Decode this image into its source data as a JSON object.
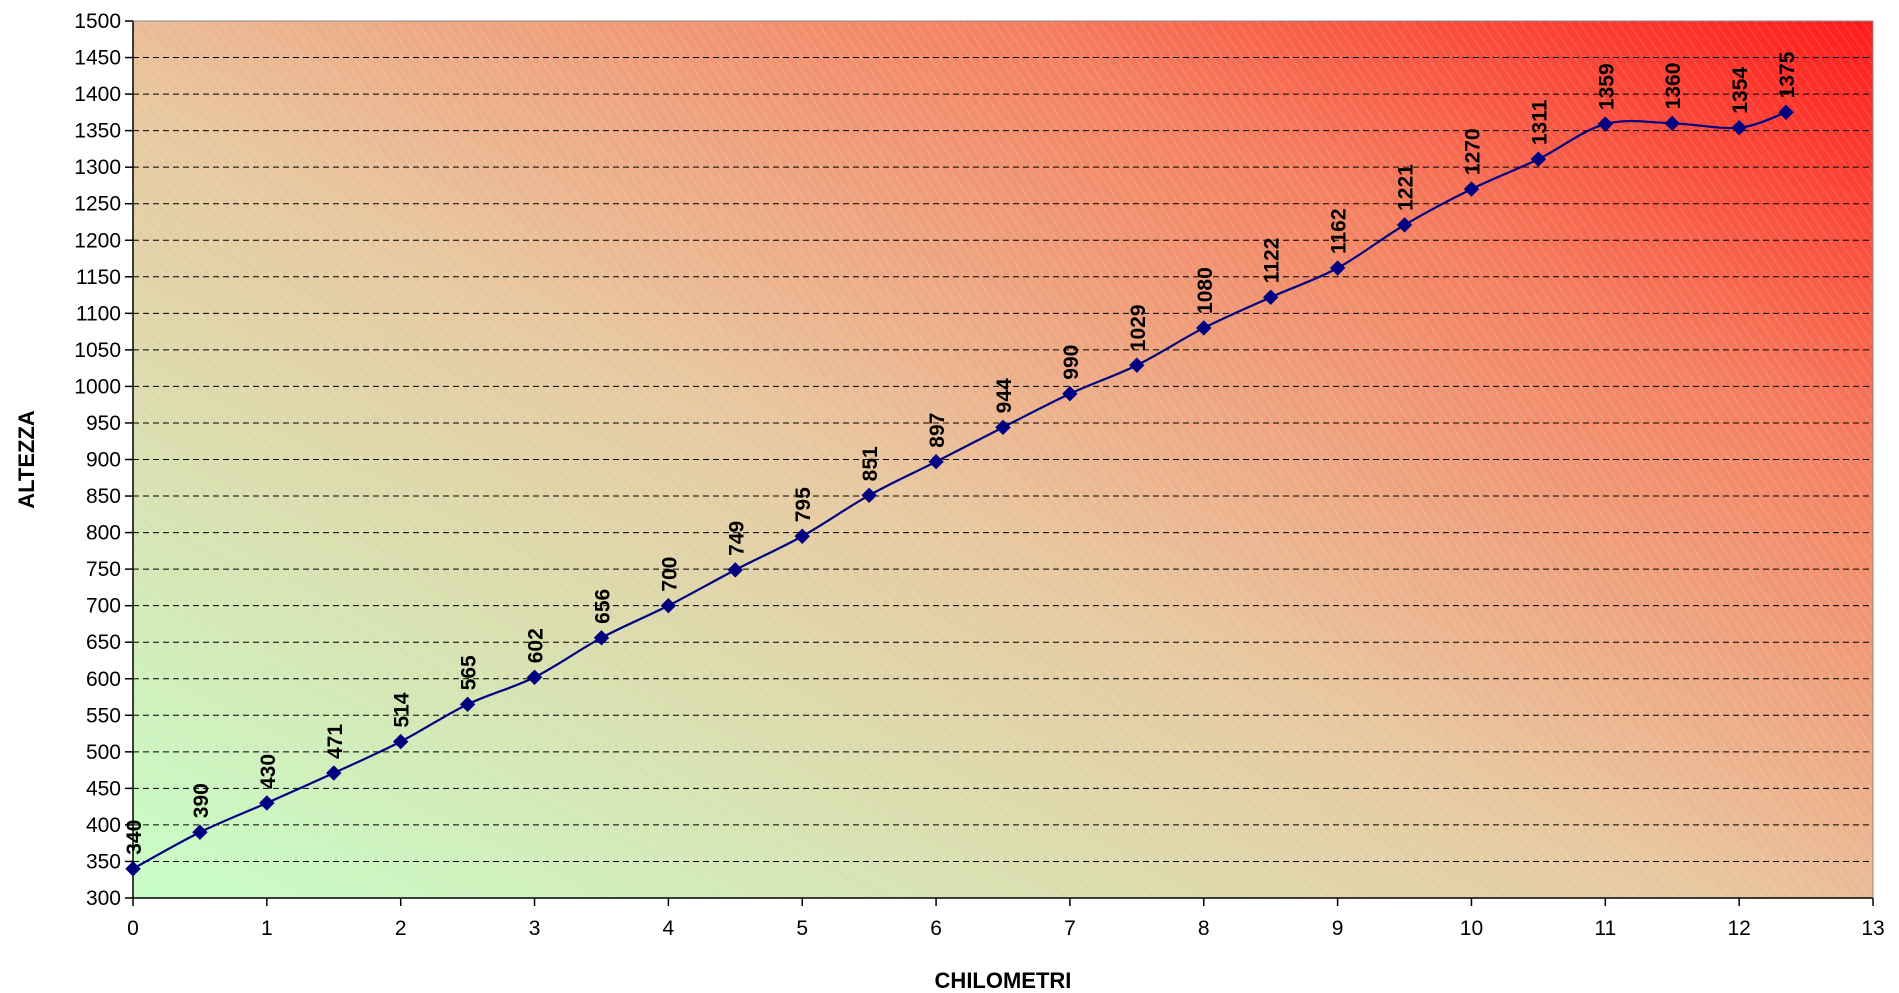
{
  "chart_data": {
    "type": "line",
    "xlabel": "CHILOMETRI",
    "ylabel": "ALTEZZA",
    "xlim": [
      0,
      13
    ],
    "ylim": [
      300,
      1500
    ],
    "x_ticks": [
      "0",
      "1",
      "2",
      "3",
      "4",
      "5",
      "6",
      "7",
      "8",
      "9",
      "10",
      "11",
      "12",
      "13"
    ],
    "y_ticks": [
      "300",
      "350",
      "400",
      "450",
      "500",
      "550",
      "600",
      "650",
      "700",
      "750",
      "800",
      "850",
      "900",
      "950",
      "1000",
      "1050",
      "1100",
      "1150",
      "1200",
      "1250",
      "1300",
      "1350",
      "1400",
      "1450",
      "1500"
    ],
    "grid": "horizontal dashed",
    "legend": "none",
    "line_color": "#000080",
    "marker": "diamond",
    "background_gradient": {
      "bottom_left": "#c6ffc6",
      "top_right": "#ff1a1a"
    },
    "x": [
      0,
      0.5,
      1,
      1.5,
      2,
      2.5,
      3,
      3.5,
      4,
      4.5,
      5,
      5.5,
      6,
      6.5,
      7,
      7.5,
      8,
      8.5,
      9,
      9.5,
      10,
      10.5,
      11,
      11.5,
      12,
      12.35
    ],
    "y": [
      340,
      390,
      430,
      471,
      514,
      565,
      602,
      656,
      700,
      749,
      795,
      851,
      897,
      944,
      990,
      1029,
      1080,
      1122,
      1162,
      1221,
      1270,
      1311,
      1359,
      1360,
      1354,
      1375
    ],
    "data_labels": [
      "340",
      "390",
      "430",
      "471",
      "514",
      "565",
      "602",
      "656",
      "700",
      "749",
      "795",
      "851",
      "897",
      "944",
      "990",
      "1029",
      "1080",
      "1122",
      "1162",
      "1221",
      "1270",
      "1311",
      "1359",
      "1360",
      "1354",
      "1375"
    ]
  }
}
